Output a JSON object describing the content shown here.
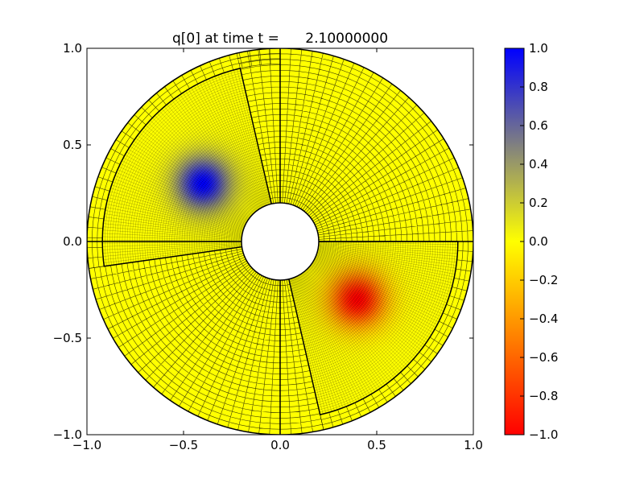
{
  "chart_data": {
    "type": "heatmap",
    "title": "q[0] at time t =      2.10000000",
    "xlabel": "",
    "ylabel": "",
    "xlim": [
      -1.0,
      1.0
    ],
    "ylim": [
      -1.0,
      1.0
    ],
    "xticks": [
      "−1.0",
      "−0.5",
      "0.0",
      "0.5",
      "1.0"
    ],
    "xtick_values": [
      -1.0,
      -0.5,
      0.0,
      0.5,
      1.0
    ],
    "yticks": [
      "−1.0",
      "−0.5",
      "0.0",
      "0.5",
      "1.0"
    ],
    "ytick_values": [
      -1.0,
      -0.5,
      0.0,
      0.5,
      1.0
    ],
    "grid": false,
    "domain": {
      "shape": "annulus",
      "inner_radius": 0.2,
      "outer_radius": 1.0
    },
    "field": {
      "background_value": 0.0,
      "features": [
        {
          "name": "positive blob",
          "center": [
            -0.4,
            0.3
          ],
          "peak": 1.0,
          "width": 0.1
        },
        {
          "name": "negative blob",
          "center": [
            0.4,
            -0.3
          ],
          "peak": -1.0,
          "width": 0.1
        }
      ]
    },
    "patch_boundaries": {
      "radial_lines_deg": [
        0,
        90,
        180,
        270
      ],
      "patches": [
        {
          "r": [
            0.2,
            0.92
          ],
          "theta_deg": [
            103,
            188
          ]
        },
        {
          "r": [
            0.2,
            0.92
          ],
          "theta_deg": [
            -77,
            0
          ]
        }
      ]
    },
    "colorbar": {
      "vmin": -1.0,
      "vmax": 1.0,
      "ticks": [
        "1.0",
        "0.8",
        "0.6",
        "0.4",
        "0.2",
        "0.0",
        "−0.2",
        "−0.4",
        "−0.6",
        "−0.8",
        "−1.0"
      ],
      "tick_values": [
        1.0,
        0.8,
        0.6,
        0.4,
        0.2,
        0.0,
        -0.2,
        -0.4,
        -0.6,
        -0.8,
        -1.0
      ],
      "colormap": [
        {
          "v": -1.0,
          "color": "#ff0000"
        },
        {
          "v": 0.0,
          "color": "#ffff00"
        },
        {
          "v": 0.5,
          "color": "#808080"
        },
        {
          "v": 1.0,
          "color": "#0000ff"
        }
      ]
    }
  }
}
